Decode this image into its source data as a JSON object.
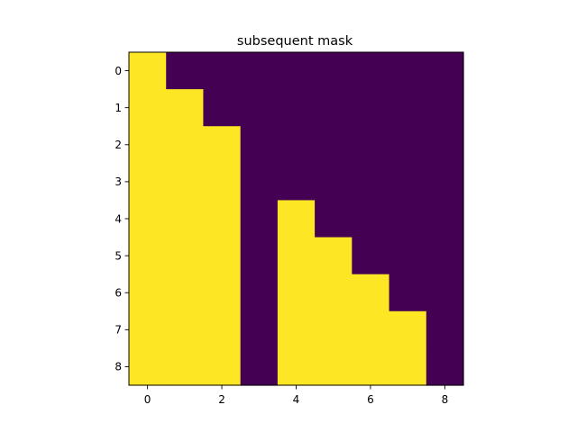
{
  "chart_data": {
    "type": "heatmap",
    "title": "subsequent mask",
    "xlabel": "",
    "ylabel": "",
    "rows": 9,
    "cols": 9,
    "x_ticks": [
      0,
      2,
      4,
      6,
      8
    ],
    "y_ticks": [
      0,
      1,
      2,
      3,
      4,
      5,
      6,
      7,
      8
    ],
    "xlim": [
      -0.5,
      8.5
    ],
    "ylim": [
      8.5,
      -0.5
    ],
    "grid": false,
    "colormap": "viridis",
    "colors": {
      "true": "#fde725",
      "false": "#440154"
    },
    "values": [
      [
        1,
        0,
        0,
        0,
        0,
        0,
        0,
        0,
        0
      ],
      [
        1,
        1,
        0,
        0,
        0,
        0,
        0,
        0,
        0
      ],
      [
        1,
        1,
        1,
        0,
        0,
        0,
        0,
        0,
        0
      ],
      [
        1,
        1,
        1,
        0,
        0,
        0,
        0,
        0,
        0
      ],
      [
        1,
        1,
        1,
        0,
        1,
        0,
        0,
        0,
        0
      ],
      [
        1,
        1,
        1,
        0,
        1,
        1,
        0,
        0,
        0
      ],
      [
        1,
        1,
        1,
        0,
        1,
        1,
        1,
        0,
        0
      ],
      [
        1,
        1,
        1,
        0,
        1,
        1,
        1,
        1,
        0
      ],
      [
        1,
        1,
        1,
        0,
        1,
        1,
        1,
        1,
        0
      ]
    ]
  }
}
